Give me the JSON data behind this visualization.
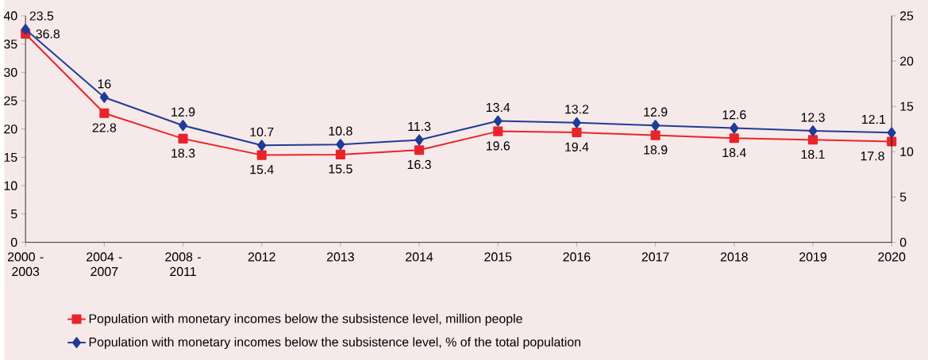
{
  "chart_data": {
    "type": "line",
    "categories": [
      "2000 - 2003",
      "2004 - 2007",
      "2008 - 2011",
      "2012",
      "2013",
      "2014",
      "2015",
      "2016",
      "2017",
      "2018",
      "2019",
      "2020"
    ],
    "series": [
      {
        "name": "Population with monetary incomes below the subsistence level, million people",
        "color": "#e8242b",
        "marker": "square",
        "values": [
          36.8,
          22.8,
          18.3,
          15.4,
          15.5,
          16.3,
          19.6,
          19.4,
          18.9,
          18.4,
          18.1,
          17.8
        ],
        "value_labels": [
          "36.8",
          "22.8",
          "18.3",
          "15.4",
          "15.5",
          "16.3",
          "19.6",
          "19.4",
          "18.9",
          "18.4",
          "18.1",
          "17.8"
        ]
      },
      {
        "name": "Population with monetary incomes below the subsistence level, % of the total population",
        "color": "#1f3c96",
        "marker": "diamond",
        "axis": "y2",
        "values": [
          23.5,
          16,
          12.9,
          10.7,
          10.8,
          11.3,
          13.4,
          13.2,
          12.9,
          12.6,
          12.3,
          12.1
        ],
        "value_labels": [
          "23.5",
          "16",
          "12.9",
          "10.7",
          "10.8",
          "11.3",
          "13.4",
          "13.2",
          "12.9",
          "12.6",
          "12.3",
          "12.1"
        ]
      }
    ],
    "ylim": [
      0,
      40
    ],
    "yticks": [
      0,
      5,
      10,
      15,
      20,
      25,
      30,
      35,
      40
    ],
    "y2lim": [
      0,
      25
    ],
    "y2ticks": [
      0,
      5,
      10,
      15,
      20,
      25
    ],
    "legend": "bottom",
    "grid": false
  }
}
